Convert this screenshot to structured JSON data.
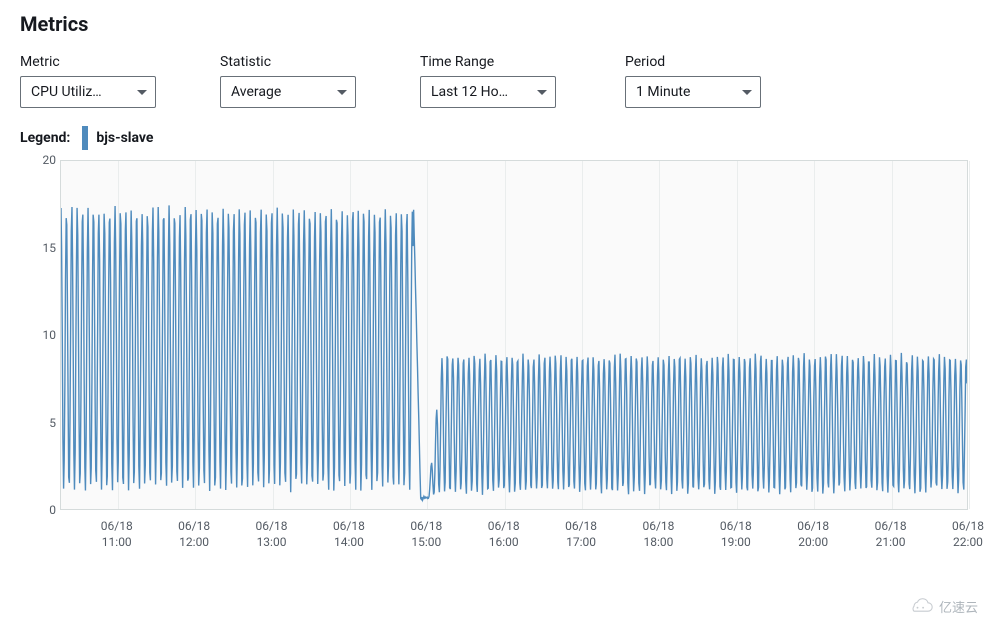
{
  "title": "Metrics",
  "controls": {
    "metric": {
      "label": "Metric",
      "value": "CPU Utiliz…"
    },
    "statistic": {
      "label": "Statistic",
      "value": "Average"
    },
    "timeRange": {
      "label": "Time Range",
      "value": "Last 12 Ho…"
    },
    "period": {
      "label": "Period",
      "value": "1 Minute"
    }
  },
  "legend": {
    "label": "Legend:",
    "series": [
      {
        "name": "bjs-slave",
        "color": "#4f8bbd"
      }
    ]
  },
  "chart": {
    "type": "line",
    "background_color": "#fafafa",
    "border_color": "#d5dbdb",
    "grid_color": "#eaeded",
    "axis_text_color": "#545b64",
    "axis_fontsize": 12,
    "ylim": [
      0,
      20
    ],
    "yticks": [
      0,
      5,
      10,
      15,
      20
    ],
    "x_start_minutes": 616,
    "x_end_minutes": 1320,
    "xticks": [
      {
        "minutes": 660,
        "date": "06/18",
        "time": "11:00"
      },
      {
        "minutes": 720,
        "date": "06/18",
        "time": "12:00"
      },
      {
        "minutes": 780,
        "date": "06/18",
        "time": "13:00"
      },
      {
        "minutes": 840,
        "date": "06/18",
        "time": "14:00"
      },
      {
        "minutes": 900,
        "date": "06/18",
        "time": "15:00"
      },
      {
        "minutes": 960,
        "date": "06/18",
        "time": "16:00"
      },
      {
        "minutes": 1020,
        "date": "06/18",
        "time": "17:00"
      },
      {
        "minutes": 1080,
        "date": "06/18",
        "time": "18:00"
      },
      {
        "minutes": 1140,
        "date": "06/18",
        "time": "19:00"
      },
      {
        "minutes": 1200,
        "date": "06/18",
        "time": "20:00"
      },
      {
        "minutes": 1260,
        "date": "06/18",
        "time": "21:00"
      },
      {
        "minutes": 1320,
        "date": "06/18",
        "time": "22:00"
      }
    ],
    "series": [
      {
        "name": "bjs-slave",
        "color": "#4f8bbd",
        "line_width": 1.4,
        "pattern": {
          "phase1": {
            "start": 616,
            "end": 890,
            "period_min": 4.2,
            "high": 17.2,
            "low": 1.2,
            "jitter": 0.5
          },
          "transition": {
            "start": 890,
            "end": 912,
            "dip_to": 0.6
          },
          "phase2": {
            "start": 912,
            "end": 1320,
            "period_min": 4.2,
            "high": 8.8,
            "low": 1.0,
            "jitter": 0.4
          }
        }
      }
    ]
  },
  "watermark": "亿速云"
}
